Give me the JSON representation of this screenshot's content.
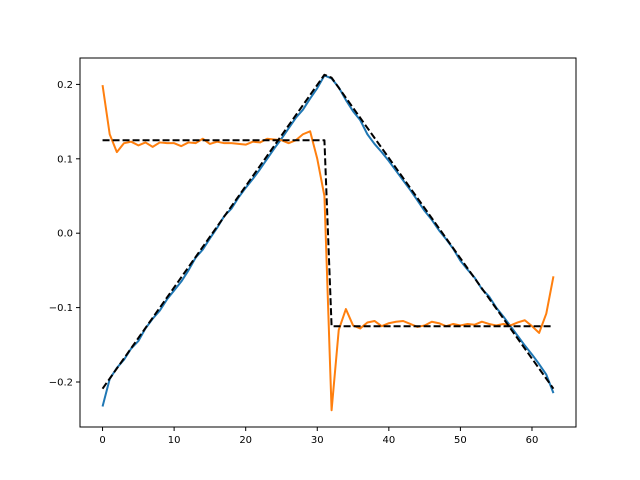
{
  "chart_data": {
    "type": "line",
    "title": "",
    "xlabel": "",
    "ylabel": "",
    "xlim": [
      -3.15,
      66.15
    ],
    "ylim": [
      -0.2605,
      0.2355
    ],
    "grid": false,
    "legend": "none",
    "x_ticks": [
      0,
      10,
      20,
      30,
      40,
      50,
      60
    ],
    "x_tick_labels": [
      "0",
      "10",
      "20",
      "30",
      "40",
      "50",
      "60"
    ],
    "y_ticks": [
      -0.2,
      -0.1,
      0.0,
      0.1,
      0.2
    ],
    "y_tick_labels": [
      "−0.2",
      "−0.1",
      "0.0",
      "0.1",
      "0.2"
    ],
    "series": [
      {
        "color": "#1f77b4",
        "style": "solid",
        "x": [
          0,
          1,
          2,
          3,
          4,
          5,
          6,
          7,
          8,
          9,
          10,
          11,
          12,
          13,
          14,
          15,
          16,
          17,
          18,
          19,
          20,
          21,
          22,
          23,
          24,
          25,
          26,
          27,
          28,
          29,
          30,
          31,
          32,
          33,
          34,
          35,
          36,
          37,
          38,
          39,
          40,
          41,
          42,
          43,
          44,
          45,
          46,
          47,
          48,
          49,
          50,
          51,
          52,
          53,
          54,
          55,
          56,
          57,
          58,
          59,
          60,
          61,
          62,
          63
        ],
        "y": [
          -0.233,
          -0.196,
          -0.181,
          -0.17,
          -0.155,
          -0.145,
          -0.128,
          -0.115,
          -0.104,
          -0.089,
          -0.077,
          -0.065,
          -0.05,
          -0.033,
          -0.022,
          -0.007,
          0.007,
          0.023,
          0.033,
          0.048,
          0.061,
          0.073,
          0.086,
          0.1,
          0.114,
          0.127,
          0.141,
          0.155,
          0.166,
          0.181,
          0.195,
          0.212,
          0.208,
          0.196,
          0.179,
          0.164,
          0.152,
          0.133,
          0.12,
          0.109,
          0.097,
          0.084,
          0.071,
          0.058,
          0.044,
          0.03,
          0.018,
          0.004,
          -0.008,
          -0.021,
          -0.037,
          -0.049,
          -0.06,
          -0.075,
          -0.085,
          -0.1,
          -0.112,
          -0.125,
          -0.138,
          -0.151,
          -0.163,
          -0.176,
          -0.19,
          -0.215
        ]
      },
      {
        "color": "#ff7f0e",
        "style": "solid",
        "x": [
          0,
          1,
          2,
          3,
          4,
          5,
          6,
          7,
          8,
          9,
          10,
          11,
          12,
          13,
          14,
          15,
          16,
          17,
          18,
          19,
          20,
          21,
          22,
          23,
          24,
          25,
          26,
          27,
          28,
          29,
          30,
          31,
          32,
          33,
          34,
          35,
          36,
          37,
          38,
          39,
          40,
          41,
          42,
          43,
          44,
          45,
          46,
          47,
          48,
          49,
          50,
          51,
          52,
          53,
          54,
          55,
          56,
          57,
          58,
          59,
          60,
          61,
          62,
          63
        ],
        "y": [
          0.199,
          0.133,
          0.109,
          0.121,
          0.123,
          0.118,
          0.122,
          0.116,
          0.122,
          0.121,
          0.121,
          0.117,
          0.122,
          0.121,
          0.127,
          0.12,
          0.123,
          0.121,
          0.121,
          0.12,
          0.119,
          0.123,
          0.122,
          0.127,
          0.126,
          0.125,
          0.121,
          0.125,
          0.133,
          0.137,
          0.1,
          0.05,
          -0.238,
          -0.13,
          -0.102,
          -0.124,
          -0.128,
          -0.12,
          -0.118,
          -0.125,
          -0.121,
          -0.119,
          -0.118,
          -0.122,
          -0.126,
          -0.124,
          -0.119,
          -0.121,
          -0.125,
          -0.122,
          -0.124,
          -0.122,
          -0.123,
          -0.119,
          -0.122,
          -0.124,
          -0.122,
          -0.124,
          -0.12,
          -0.117,
          -0.125,
          -0.134,
          -0.108,
          -0.058
        ]
      },
      {
        "color": "#000000",
        "style": "dashed",
        "x": [
          0,
          31,
          32,
          63
        ],
        "y": [
          -0.209,
          0.213,
          0.209,
          -0.209
        ]
      },
      {
        "color": "#000000",
        "style": "dashed",
        "x": [
          0,
          31,
          32,
          63
        ],
        "y": [
          0.125,
          0.125,
          -0.125,
          -0.125
        ]
      }
    ]
  }
}
